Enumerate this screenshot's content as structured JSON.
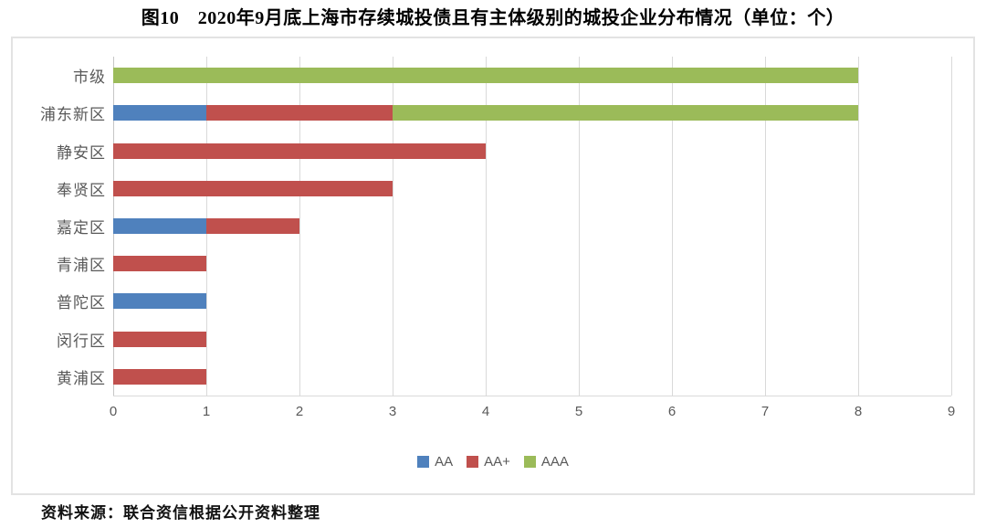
{
  "title": "图10　2020年9月底上海市存续城投债且有主体级别的城投企业分布情况（单位：个）",
  "source_note": "资料来源：联合资信根据公开资料整理",
  "chart_data": {
    "type": "bar",
    "orientation": "horizontal",
    "stacked": true,
    "title": "图10　2020年9月底上海市存续城投债且有主体级别的城投企业分布情况（单位：个）",
    "categories": [
      "市级",
      "浦东新区",
      "静安区",
      "奉贤区",
      "嘉定区",
      "青浦区",
      "普陀区",
      "闵行区",
      "黄浦区"
    ],
    "series": [
      {
        "name": "AA",
        "color": "#4F81BD",
        "values": [
          0,
          1,
          0,
          0,
          1,
          0,
          1,
          0,
          0
        ]
      },
      {
        "name": "AA+",
        "color": "#C0504D",
        "values": [
          0,
          2,
          4,
          3,
          1,
          1,
          0,
          1,
          1
        ]
      },
      {
        "name": "AAA",
        "color": "#9BBB59",
        "values": [
          8,
          5,
          0,
          0,
          0,
          0,
          0,
          0,
          0
        ]
      }
    ],
    "totals": [
      8,
      8,
      4,
      3,
      2,
      1,
      1,
      1,
      1
    ],
    "x_ticks": [
      "0",
      "1",
      "2",
      "3",
      "4",
      "5",
      "6",
      "7",
      "8",
      "9"
    ],
    "xlim": [
      0,
      9
    ],
    "xlabel": "",
    "ylabel": "",
    "grid": true,
    "legend_position": "bottom-center",
    "colors": {
      "gridline": "#d9d9d9",
      "zero_axis": "#c6c6c6",
      "tick_label": "#595959",
      "category_label": "#595959",
      "chart_border": "#e3e3e3"
    }
  }
}
